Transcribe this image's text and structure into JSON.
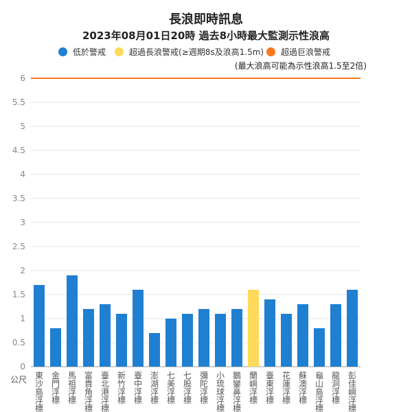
{
  "title": "長浪即時訊息",
  "subtitle": "2023年08月01日20時 過去8小時最大監測示性浪高",
  "legend": [
    {
      "label": "低於警戒",
      "color": "#1f7fd1"
    },
    {
      "label": "超過長浪警戒(≥週期8s及浪高1.5m)",
      "color": "#ffd95a"
    },
    {
      "label": "超過巨浪警戒",
      "color": "#f7791b"
    }
  ],
  "note": "(最大浪高可能為示性浪高1.5至2倍)",
  "unit_label": "公尺",
  "chart_data": {
    "type": "bar",
    "ylim": [
      0,
      6
    ],
    "yticks": [
      0,
      0.5,
      1,
      1.5,
      2,
      2.5,
      3,
      3.5,
      4,
      4.5,
      5,
      5.5,
      6
    ],
    "ytick_labels": [
      "0",
      "0.5",
      "1",
      "1.5",
      "2",
      "2.5",
      "3",
      "3.5",
      "4",
      "4.5",
      "5",
      "5.5",
      "6"
    ],
    "grid": true,
    "threshold_line": {
      "value": 6,
      "color": "#f7791b"
    },
    "categories": [
      "東沙島浮標",
      "金門浮標",
      "馬祖浮標",
      "富貴角浮標",
      "臺北港浮標",
      "新竹浮標",
      "臺中浮標",
      "澎湖浮標",
      "七美浮標",
      "七股浮標",
      "彌陀浮標",
      "小琉球浮標",
      "鵝鑾鼻浮標",
      "蘭嶼浮標",
      "臺東浮標",
      "花蓮浮標",
      "蘇澳浮標",
      "龜山島浮標",
      "龍洞浮標",
      "彭佳嶼浮標"
    ],
    "values": [
      1.7,
      0.8,
      1.9,
      1.2,
      1.3,
      1.1,
      1.6,
      0.7,
      1.0,
      1.1,
      1.2,
      1.1,
      1.2,
      1.6,
      1.4,
      1.1,
      1.3,
      0.8,
      1.3,
      1.6
    ],
    "colors": [
      "#1f7fd1",
      "#1f7fd1",
      "#1f7fd1",
      "#1f7fd1",
      "#1f7fd1",
      "#1f7fd1",
      "#1f7fd1",
      "#1f7fd1",
      "#1f7fd1",
      "#1f7fd1",
      "#1f7fd1",
      "#1f7fd1",
      "#1f7fd1",
      "#ffd95a",
      "#1f7fd1",
      "#1f7fd1",
      "#1f7fd1",
      "#1f7fd1",
      "#1f7fd1",
      "#1f7fd1"
    ]
  }
}
